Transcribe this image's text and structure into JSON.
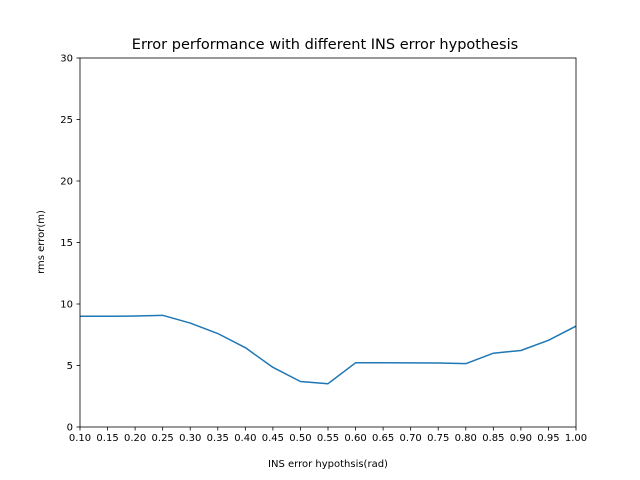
{
  "chart_data": {
    "type": "line",
    "title": "Error performance with different INS error hypothesis",
    "xlabel": "INS  error hypothsis(rad)",
    "ylabel": "rms error(m)",
    "xlim": [
      0.1,
      1.0
    ],
    "ylim": [
      0,
      30
    ],
    "xticks": [
      "0.10",
      "0.15",
      "0.20",
      "0.25",
      "0.30",
      "0.35",
      "0.40",
      "0.45",
      "0.50",
      "0.55",
      "0.60",
      "0.65",
      "0.70",
      "0.75",
      "0.80",
      "0.85",
      "0.90",
      "0.95",
      "1.00"
    ],
    "yticks": [
      "0",
      "5",
      "10",
      "15",
      "20",
      "25",
      "30"
    ],
    "grid": false,
    "series": [
      {
        "color": "#1f77b4",
        "x": [
          0.1,
          0.15,
          0.2,
          0.25,
          0.3,
          0.35,
          0.4,
          0.45,
          0.5,
          0.55,
          0.6,
          0.65,
          0.7,
          0.75,
          0.8,
          0.85,
          0.9,
          0.95,
          1.0
        ],
        "y": [
          9.0,
          9.0,
          9.02,
          9.08,
          8.45,
          7.6,
          6.45,
          4.85,
          3.7,
          3.52,
          5.22,
          5.22,
          5.21,
          5.2,
          5.15,
          6.0,
          6.22,
          7.05,
          8.2
        ]
      }
    ]
  }
}
